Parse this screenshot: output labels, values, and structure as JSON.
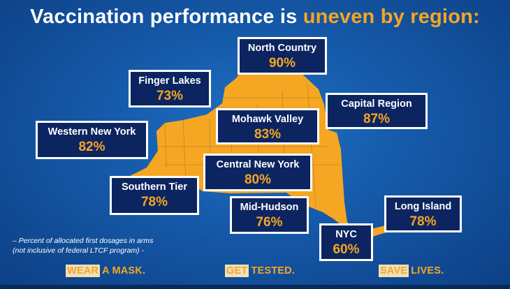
{
  "headline": {
    "prefix": "Vaccination performance is",
    "accent": "uneven by region:"
  },
  "colors": {
    "background": "#1559a8",
    "map_fill": "#f5a623",
    "box_fill": "#0c2560",
    "box_border": "#ffffff",
    "accent_text": "#f5a623"
  },
  "regions": [
    {
      "name": "North Country",
      "value": "90%"
    },
    {
      "name": "Finger Lakes",
      "value": "73%"
    },
    {
      "name": "Capital Region",
      "value": "87%"
    },
    {
      "name": "Mohawk Valley",
      "value": "83%"
    },
    {
      "name": "Western New York",
      "value": "82%"
    },
    {
      "name": "Central New York",
      "value": "80%"
    },
    {
      "name": "Southern Tier",
      "value": "78%"
    },
    {
      "name": "Mid-Hudson",
      "value": "76%"
    },
    {
      "name": "Long Island",
      "value": "78%"
    },
    {
      "name": "NYC",
      "value": "60%"
    }
  ],
  "footnote": {
    "line1": "– Percent of allocated first dosages in arms",
    "line2": "(not inclusive of federal LTCF program) -"
  },
  "slogans": [
    {
      "highlight": "WEAR",
      "rest": "A MASK."
    },
    {
      "highlight": "GET",
      "rest": "TESTED."
    },
    {
      "highlight": "SAVE",
      "rest": "LIVES."
    }
  ]
}
